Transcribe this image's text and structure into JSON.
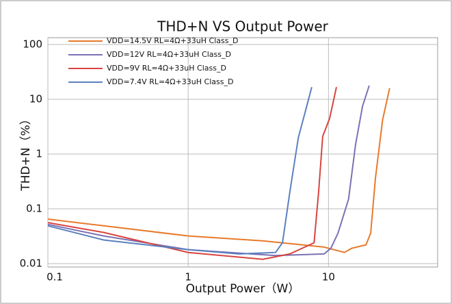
{
  "chart_data": {
    "type": "line",
    "title": "THD+N VS Output Power",
    "x_label": "Output Power（W）",
    "y_label": "THD+N（%）",
    "x_log": true,
    "y_log": true,
    "grid": true,
    "legend": "upper left",
    "xlim": [
      0.1,
      60
    ],
    "ylim": [
      0.01,
      100
    ],
    "xticks": [
      0.1,
      1,
      10
    ],
    "yticks": [
      0.01,
      0.1,
      1,
      10,
      100
    ],
    "series": [
      {
        "name": "VDD=14.5V  RL=4Ω+33uH Class_D",
        "color": "#e8792a",
        "x": [
          0.1,
          0.25,
          1,
          3.4,
          9.3,
          13,
          14.6,
          18.5,
          20,
          21.6,
          24.3,
          27.3
        ],
        "values": [
          0.065,
          0.049,
          0.032,
          0.026,
          0.02,
          0.016,
          0.019,
          0.022,
          0.036,
          0.36,
          4.2,
          16
        ]
      },
      {
        "name": "VDD=12V  RL=4Ω+33uH Class_D",
        "color": "#7b70b4",
        "x": [
          0.1,
          0.25,
          1,
          4.2,
          9.3,
          10.4,
          11.7,
          13.9,
          15.6,
          17.5,
          19.5
        ],
        "values": [
          0.052,
          0.032,
          0.018,
          0.014,
          0.015,
          0.019,
          0.036,
          0.15,
          1.5,
          7.5,
          17.8
        ]
      },
      {
        "name": "VDD=9V  RL=4Ω+33uH Class_D",
        "color": "#d9433e",
        "x": [
          0.1,
          0.25,
          1,
          3.4,
          5.3,
          7.9,
          8.5,
          9.1,
          10.2,
          11.4
        ],
        "values": [
          0.056,
          0.037,
          0.016,
          0.012,
          0.015,
          0.024,
          0.2,
          2.1,
          4.5,
          16.7
        ]
      },
      {
        "name": "VDD=7.4V  RL=4Ω+33uH Class_D",
        "color": "#5a7fbf",
        "x": [
          0.1,
          0.25,
          1,
          2.3,
          4.2,
          4.7,
          5.3,
          6.1,
          7.0,
          7.6
        ],
        "values": [
          0.049,
          0.027,
          0.018,
          0.015,
          0.016,
          0.024,
          0.2,
          2.0,
          7.5,
          16.7
        ]
      }
    ]
  }
}
